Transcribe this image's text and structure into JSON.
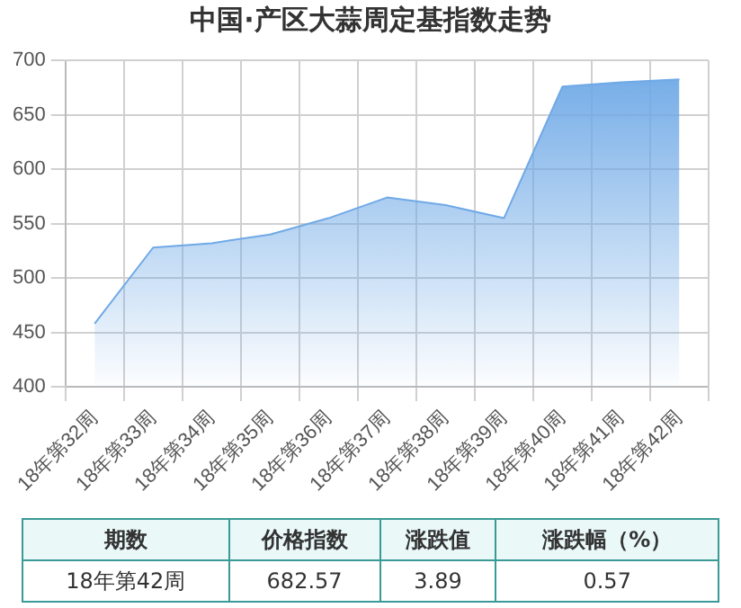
{
  "chart_data": {
    "type": "area",
    "title": "中国·产区大蒜周定基指数走势",
    "categories": [
      "18年第32周",
      "18年第33周",
      "18年第34周",
      "18年第35周",
      "18年第36周",
      "18年第37周",
      "18年第38周",
      "18年第39周",
      "18年第40周",
      "18年第41周",
      "18年第42周"
    ],
    "series": [
      {
        "color": "#6fa9e6",
        "values": [
          458,
          528,
          532,
          540,
          555,
          574,
          567,
          555,
          676,
          680,
          682.57
        ]
      }
    ],
    "ylim": [
      400,
      700
    ],
    "yticks": [
      400,
      450,
      500,
      550,
      600,
      650,
      700
    ],
    "grid": true,
    "legend": false,
    "marker": "none",
    "annotations": [
      "期数",
      "价格指数",
      "涨跌值",
      "涨跌幅（%）",
      "18年第42周",
      "682.57",
      "3.89",
      "0.57"
    ]
  }
}
